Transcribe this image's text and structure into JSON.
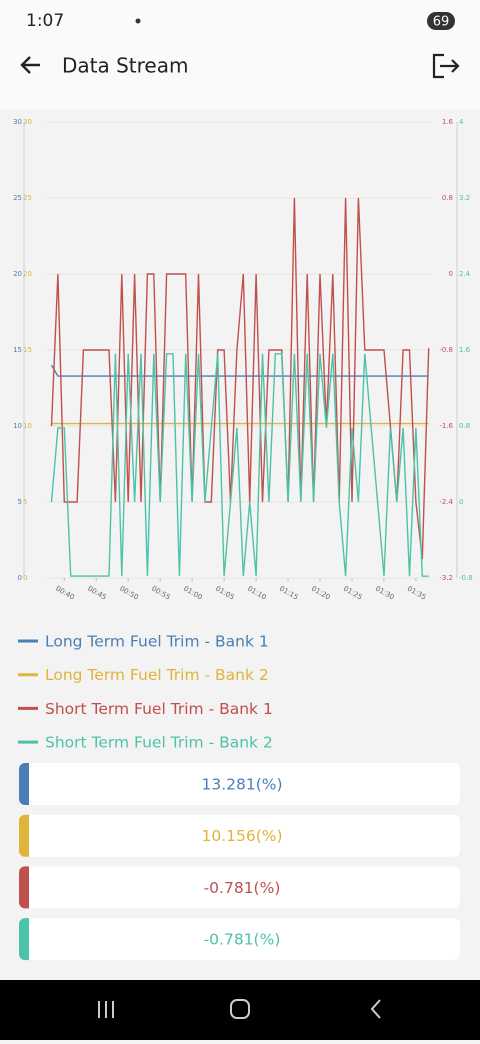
{
  "status_bar": {
    "time": "1:07",
    "battery": "69"
  },
  "header": {
    "title": "Data Stream"
  },
  "chart_data": {
    "type": "line",
    "x": [
      38,
      39,
      40,
      41,
      42,
      43,
      44,
      45,
      46,
      47,
      48,
      49,
      50,
      51,
      52,
      53,
      54,
      55,
      56,
      57,
      58,
      59,
      60,
      61,
      62,
      63,
      64,
      65,
      66,
      67,
      68,
      69,
      70,
      71,
      72,
      73,
      74,
      75,
      76,
      77,
      78,
      79,
      80,
      81,
      82,
      83,
      84,
      85,
      86,
      87,
      88,
      89,
      90,
      91,
      92,
      93,
      94,
      95,
      96,
      97
    ],
    "xlim": [
      37.3,
      97.2
    ],
    "xticks": [
      {
        "value": 40,
        "label": "00:40"
      },
      {
        "value": 45,
        "label": "00:45"
      },
      {
        "value": 50,
        "label": "00:50"
      },
      {
        "value": 55,
        "label": "00:55"
      },
      {
        "value": 60,
        "label": "01:00"
      },
      {
        "value": 65,
        "label": "01:05"
      },
      {
        "value": 70,
        "label": "01:10"
      },
      {
        "value": 75,
        "label": "01:15"
      },
      {
        "value": 80,
        "label": "01:20"
      },
      {
        "value": 85,
        "label": "01:25"
      },
      {
        "value": 90,
        "label": "01:30"
      },
      {
        "value": 95,
        "label": "01:35"
      }
    ],
    "ylim": [
      0,
      30
    ],
    "yticks": [
      0,
      5,
      10,
      15,
      20,
      25,
      30
    ],
    "y2lim": [
      -3.2,
      1.6
    ],
    "y2ticks": [
      -3.2,
      -2.4,
      -1.6,
      -0.8,
      0,
      0.8,
      1.6
    ],
    "y3lim": [
      -0.8,
      4
    ],
    "y3ticks": [
      -0.8,
      0,
      0.8,
      1.6,
      2.4,
      3.2,
      4
    ],
    "grid": true,
    "series": [
      {
        "name": "Long Term Fuel Trim - Bank 1",
        "color": "#4a7fb5",
        "axis": "y",
        "values": [
          14,
          13.281,
          13.281,
          13.281,
          13.281,
          13.281,
          13.281,
          13.281,
          13.281,
          13.281,
          13.281,
          13.281,
          13.281,
          13.281,
          13.281,
          13.281,
          13.281,
          13.281,
          13.281,
          13.281,
          13.281,
          13.281,
          13.281,
          13.281,
          13.281,
          13.281,
          13.281,
          13.281,
          13.281,
          13.281,
          13.281,
          13.281,
          13.281,
          13.281,
          13.281,
          13.281,
          13.281,
          13.281,
          13.281,
          13.281,
          13.281,
          13.281,
          13.281,
          13.281,
          13.281,
          13.281,
          13.281,
          13.281,
          13.281,
          13.281,
          13.281,
          13.281,
          13.281,
          13.281,
          13.281,
          13.281,
          13.281,
          13.281,
          13.281,
          13.281
        ]
      },
      {
        "name": "Long Term Fuel Trim - Bank 2",
        "color": "#e0b43a",
        "axis": "y",
        "values": [
          10.156,
          10.156,
          10.156,
          10.156,
          10.156,
          10.156,
          10.156,
          10.156,
          10.156,
          10.156,
          10.156,
          10.156,
          10.156,
          10.156,
          10.156,
          10.156,
          10.156,
          10.156,
          10.156,
          10.156,
          10.156,
          10.156,
          10.156,
          10.156,
          10.156,
          10.156,
          10.156,
          10.156,
          10.156,
          10.156,
          10.156,
          10.156,
          10.156,
          10.156,
          10.156,
          10.156,
          10.156,
          10.156,
          10.156,
          10.156,
          10.156,
          10.156,
          10.156,
          10.156,
          10.156,
          10.156,
          10.156,
          10.156,
          10.156,
          10.156,
          10.156,
          10.156,
          10.156,
          10.156,
          10.156,
          10.156,
          10.156,
          10.156,
          10.156,
          10.156
        ]
      },
      {
        "name": "Short Term Fuel Trim - Bank 1",
        "color": "#c0504d",
        "axis": "y2",
        "values": [
          -1.6,
          0,
          -2.4,
          -2.4,
          -2.4,
          -0.8,
          -0.8,
          -0.8,
          -0.8,
          -0.8,
          -2.4,
          0,
          -2.4,
          0,
          -2.4,
          0,
          0,
          -2.4,
          0,
          0,
          0,
          0,
          -2.4,
          0,
          -2.4,
          -2.4,
          -0.8,
          -0.8,
          -2.4,
          -0.8,
          0,
          -2.4,
          0,
          -2.4,
          -0.8,
          -0.8,
          -0.8,
          -2.4,
          0.8,
          -2.4,
          0,
          -2.4,
          0,
          -1.6,
          0,
          -2.4,
          0.8,
          -2.4,
          0.8,
          -0.8,
          -0.8,
          -0.8,
          -0.8,
          -1.6,
          -2.4,
          -0.8,
          -0.8,
          -2.4,
          -3.0,
          -0.781
        ]
      },
      {
        "name": "Short Term Fuel Trim - Bank 2",
        "color": "#4cc3a8",
        "axis": "y3",
        "values": [
          0,
          0.78,
          0.78,
          -0.78,
          -0.78,
          -0.78,
          -0.78,
          -0.78,
          -0.78,
          -0.78,
          1.56,
          -0.78,
          1.56,
          0,
          1.56,
          -0.78,
          1.56,
          0,
          1.56,
          1.56,
          -0.78,
          1.56,
          0,
          1.56,
          0,
          0.78,
          1.56,
          -0.78,
          0,
          0.78,
          -0.78,
          0,
          -0.78,
          1.56,
          0,
          1.56,
          1.56,
          0,
          1.56,
          0,
          1.56,
          0,
          1.56,
          0.78,
          1.56,
          0,
          -0.78,
          0.78,
          0,
          1.56,
          0.78,
          0,
          -0.78,
          0.78,
          0,
          0.78,
          -0.78,
          0.78,
          -0.78,
          -0.781
        ]
      }
    ]
  },
  "readings": [
    "13.281(%)",
    "10.156(%)",
    "-0.781(%)",
    "-0.781(%)"
  ]
}
